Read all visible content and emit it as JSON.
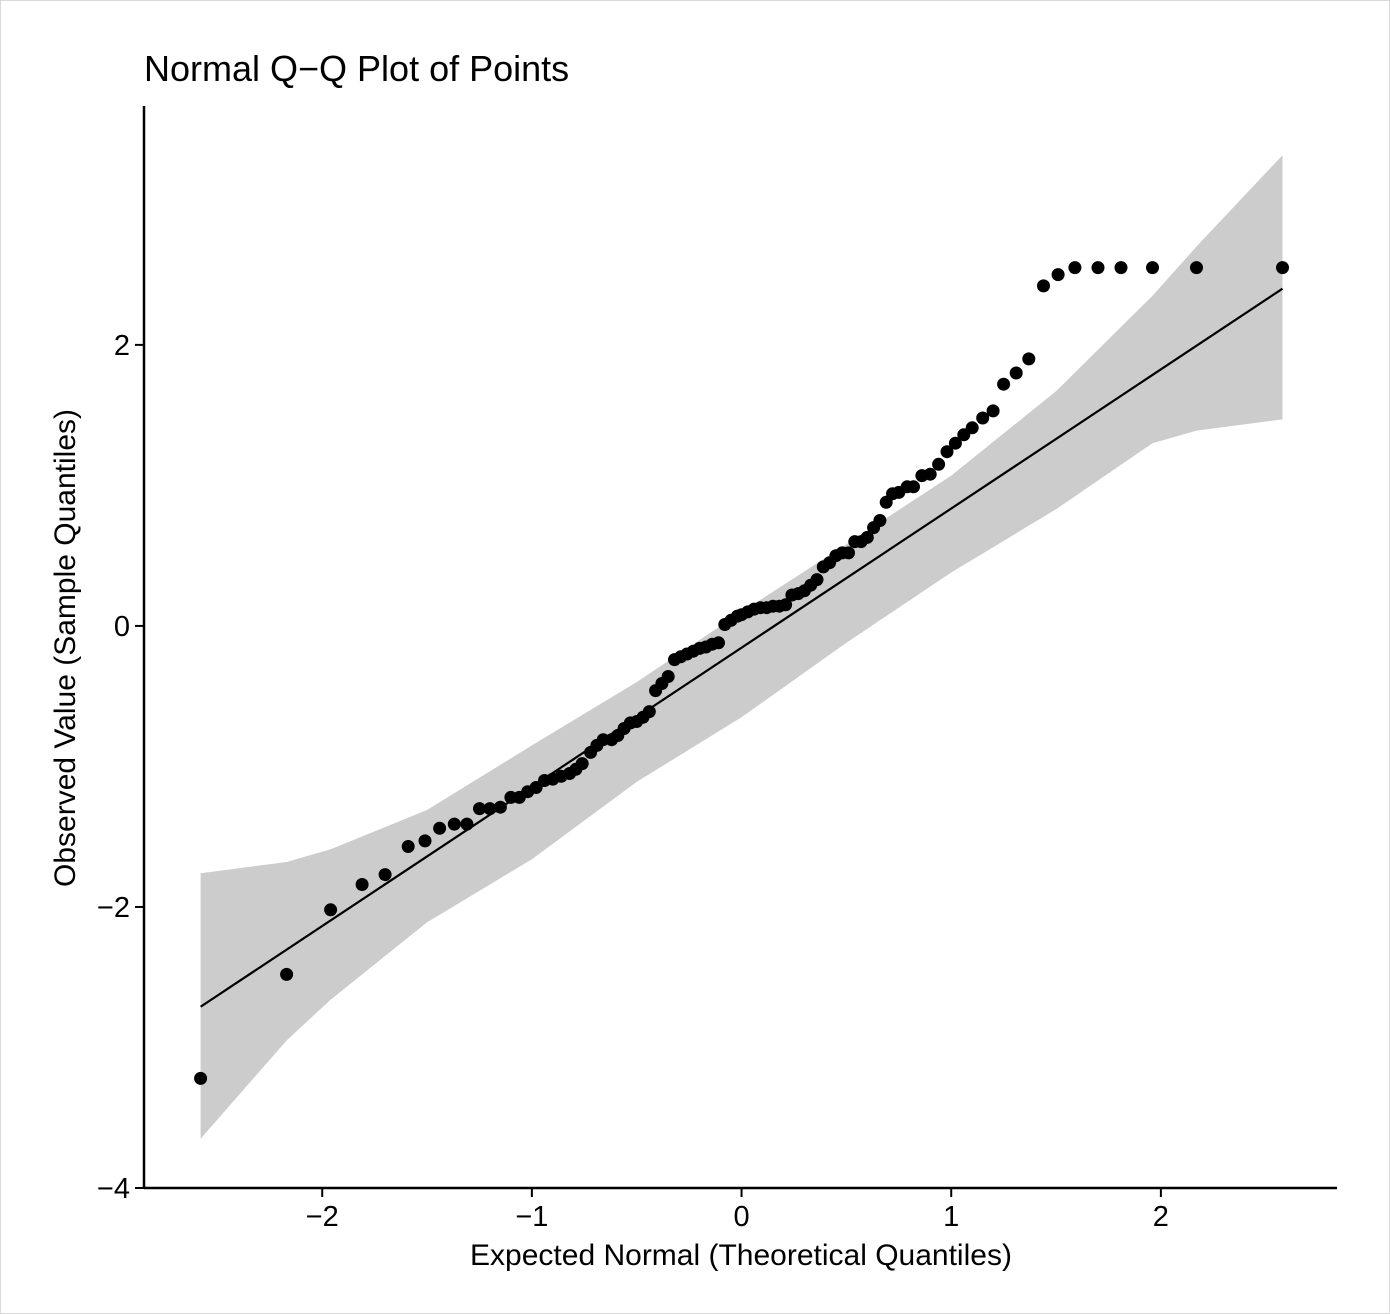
{
  "chart_data": {
    "type": "scatter",
    "title": "Normal Q−Q Plot of Points",
    "xlabel": "Expected Normal (Theoretical Quantiles)",
    "ylabel": "Observed Value (Sample Quantiles)",
    "xlim": [
      -2.85,
      2.84
    ],
    "ylim": [
      -4.0,
      3.7
    ],
    "x_ticks": [
      -2,
      -1,
      0,
      1,
      2
    ],
    "x_tick_labels": [
      "−2",
      "−1",
      "0",
      "1",
      "2"
    ],
    "y_ticks": [
      -4,
      -2,
      0,
      2
    ],
    "y_tick_labels": [
      "−4",
      "−2",
      "0",
      "2"
    ],
    "grid": false,
    "legend": "none",
    "colors": {
      "points": "#000000",
      "line": "#000000",
      "band": "#cccccc"
    },
    "reference_line": {
      "x": [
        -2.58,
        2.58
      ],
      "y": [
        -2.71,
        2.4
      ]
    },
    "confidence_band": {
      "x": [
        -2.58,
        -2.17,
        -1.96,
        -1.5,
        -1.0,
        -0.5,
        0.0,
        0.5,
        1.0,
        1.5,
        1.96,
        2.17,
        2.58
      ],
      "upper": [
        -1.76,
        -1.68,
        -1.59,
        -1.31,
        -0.85,
        -0.4,
        0.1,
        0.58,
        1.07,
        1.67,
        2.35,
        2.7,
        3.35
      ],
      "lower": [
        -3.65,
        -2.95,
        -2.66,
        -2.11,
        -1.66,
        -1.11,
        -0.65,
        -0.12,
        0.38,
        0.83,
        1.3,
        1.39,
        1.47
      ]
    },
    "series": [
      {
        "x": [
          -2.58,
          -2.17,
          -1.96,
          -1.81,
          -1.7,
          -1.59,
          -1.51,
          -1.44,
          -1.37,
          -1.31,
          -1.25,
          -1.2,
          -1.15,
          -1.1,
          -1.06,
          -1.02,
          -0.98,
          -0.94,
          -0.9,
          -0.86,
          -0.82,
          -0.79,
          -0.76,
          -0.72,
          -0.69,
          -0.66,
          -0.62,
          -0.59,
          -0.56,
          -0.53,
          -0.5,
          -0.47,
          -0.44,
          -0.41,
          -0.38,
          -0.35,
          -0.32,
          -0.29,
          -0.26,
          -0.23,
          -0.2,
          -0.17,
          -0.14,
          -0.11,
          -0.08,
          -0.05,
          -0.02,
          0.0,
          0.03,
          0.06,
          0.09,
          0.12,
          0.15,
          0.18,
          0.21,
          0.24,
          0.27,
          0.3,
          0.33,
          0.36,
          0.39,
          0.42,
          0.45,
          0.48,
          0.51,
          0.54,
          0.57,
          0.6,
          0.63,
          0.66,
          0.69,
          0.72,
          0.75,
          0.79,
          0.82,
          0.86,
          0.9,
          0.94,
          0.98,
          1.02,
          1.06,
          1.1,
          1.15,
          1.2,
          1.25,
          1.31,
          1.37,
          1.44,
          1.51,
          1.59,
          1.7,
          1.81,
          1.96,
          2.17,
          2.58
        ],
        "y": [
          -3.22,
          -2.48,
          -2.02,
          -1.84,
          -1.77,
          -1.57,
          -1.53,
          -1.44,
          -1.41,
          -1.41,
          -1.3,
          -1.3,
          -1.29,
          -1.22,
          -1.22,
          -1.18,
          -1.15,
          -1.1,
          -1.09,
          -1.07,
          -1.05,
          -1.02,
          -0.98,
          -0.9,
          -0.85,
          -0.81,
          -0.81,
          -0.78,
          -0.73,
          -0.69,
          -0.68,
          -0.65,
          -0.61,
          -0.46,
          -0.41,
          -0.36,
          -0.24,
          -0.22,
          -0.2,
          -0.18,
          -0.16,
          -0.15,
          -0.13,
          -0.12,
          0.01,
          0.04,
          0.07,
          0.08,
          0.1,
          0.12,
          0.13,
          0.13,
          0.14,
          0.14,
          0.15,
          0.22,
          0.23,
          0.25,
          0.29,
          0.33,
          0.42,
          0.45,
          0.5,
          0.52,
          0.52,
          0.6,
          0.6,
          0.63,
          0.7,
          0.75,
          0.88,
          0.94,
          0.95,
          0.99,
          0.99,
          1.07,
          1.08,
          1.15,
          1.24,
          1.3,
          1.36,
          1.41,
          1.48,
          1.53,
          1.72,
          1.8,
          1.9,
          2.42,
          2.5,
          2.55,
          2.55,
          2.55,
          2.55,
          2.55,
          2.55
        ]
      }
    ]
  }
}
